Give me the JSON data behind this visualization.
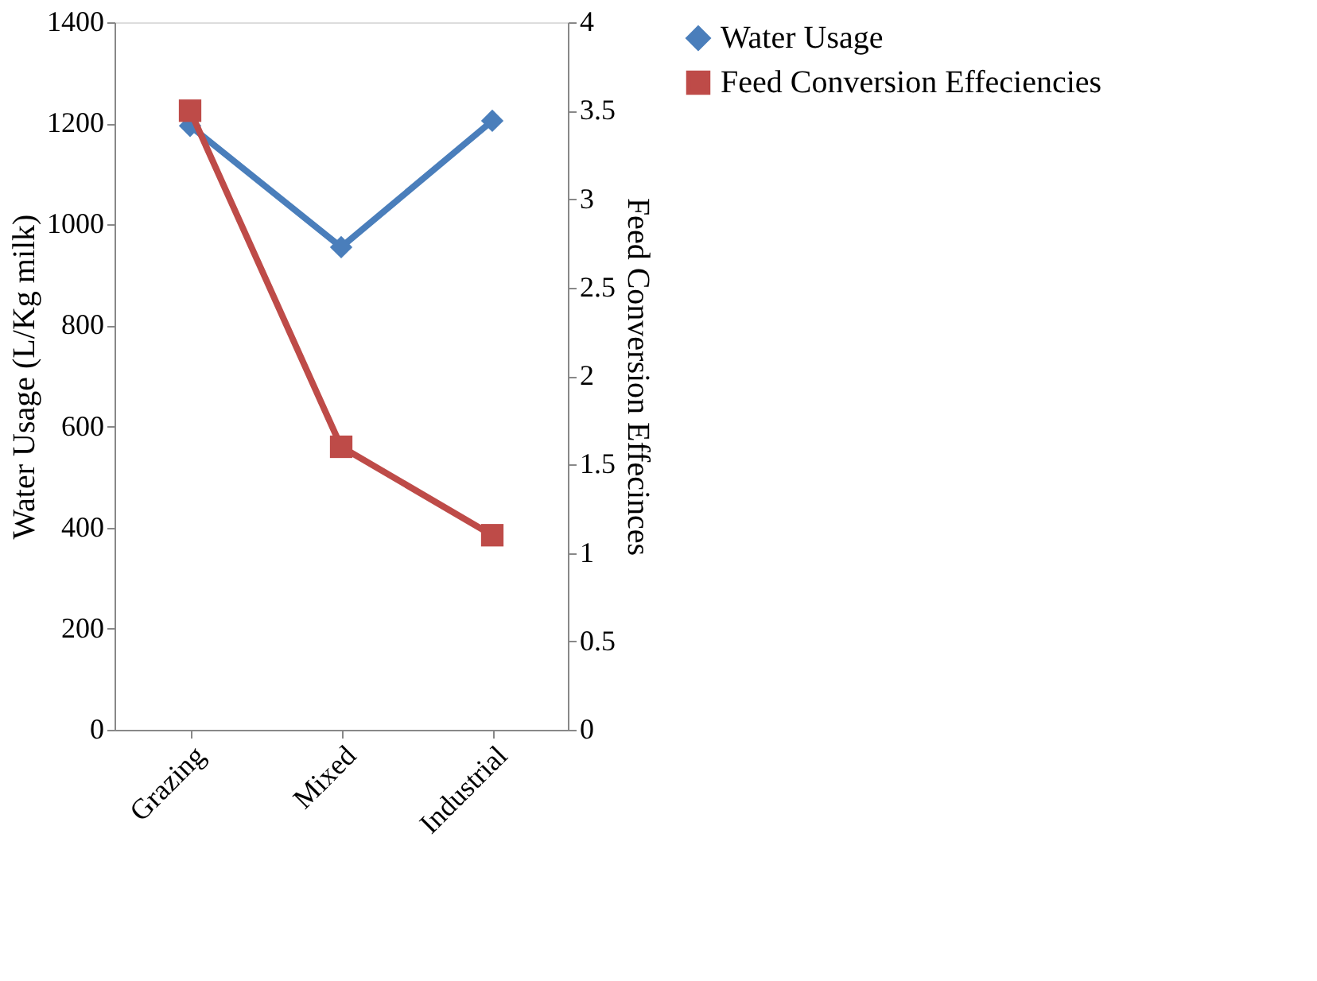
{
  "chart_data": {
    "type": "line",
    "categories": [
      "Grazing",
      "Mixed",
      "Industrial"
    ],
    "ylabel": "Water Usage (L/Kg milk)",
    "y2label": "Feed Conversion Effecinces",
    "ylim": [
      0,
      1400
    ],
    "yticks": [
      0,
      200,
      400,
      600,
      800,
      1000,
      1200,
      1400
    ],
    "y2lim": [
      0,
      4
    ],
    "y2ticks": [
      0,
      0.5,
      1,
      1.5,
      2,
      2.5,
      3,
      3.5,
      4
    ],
    "grid": false,
    "legend": "right",
    "line_style": "solid",
    "series": [
      {
        "name": "Water Usage",
        "color": "#4a7ebb",
        "marker": "diamond",
        "values": [
          1195,
          955,
          1205
        ]
      },
      {
        "name": "Feed Conversion Effeciencies",
        "color": "#be4b48",
        "marker": "square",
        "axis": "y2",
        "values": [
          3.5,
          1.6,
          1.1
        ]
      }
    ]
  }
}
